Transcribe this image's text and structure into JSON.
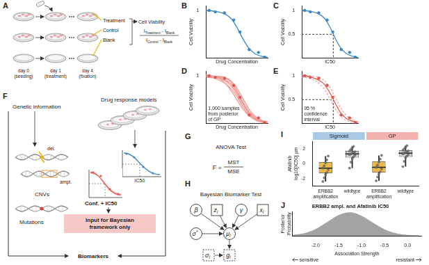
{
  "diagram": {
    "panel_letters": [
      "A",
      "B",
      "C",
      "D",
      "E",
      "F",
      "G",
      "H",
      "I",
      "J"
    ],
    "A": {
      "rows": [
        "Treatment",
        "Control",
        "Blank"
      ],
      "days": [
        [
          "day 0",
          "(seeding)"
        ],
        [
          "day 1",
          "(treatment)"
        ],
        [
          "day 4",
          "(fixation)"
        ]
      ],
      "result": "Cell Viability",
      "formula": {
        "numerator": [
          {
            "base": "I",
            "sub": "Treatment"
          },
          {
            "base": "I",
            "sub": "Blank"
          }
        ],
        "denominator": [
          {
            "base": "I",
            "sub": "Control"
          },
          {
            "base": "I",
            "sub": "Blank"
          }
        ],
        "operator": "-"
      }
    },
    "F": {
      "genetic": "Genetic information",
      "models": "Drug response models",
      "deletion": "del.",
      "amplification": "ampl.",
      "cnv": "CNVs",
      "mutations": "Mutations",
      "ic50": "IC50",
      "conf": "Conf. + IC50",
      "note": "Input for Bayesian framework only",
      "biomarkers": "Biomarkers"
    },
    "G": {
      "title": "ANOVA Test",
      "lhs": "F =",
      "numerator": "MST",
      "denominator": "MSE"
    },
    "H": {
      "title": "Bayesian Biomarker Test",
      "nodes": [
        {
          "label": "β",
          "shape": "circle"
        },
        {
          "label": "z",
          "sub": "i",
          "shape": "square"
        },
        {
          "label": "γ",
          "shape": "circle"
        },
        {
          "label": "x",
          "sub": "i",
          "shape": "square"
        },
        {
          "label": "σ",
          "sup": "*",
          "shape": "circle"
        },
        {
          "label": "μ",
          "sub": "i",
          "shape": "circle"
        },
        {
          "label": "σ",
          "sub": "i",
          "shape": "dashed"
        },
        {
          "label": "g",
          "sub": "i",
          "shape": "dashed"
        }
      ],
      "edges": [
        [
          0,
          5
        ],
        [
          1,
          5
        ],
        [
          2,
          5
        ],
        [
          3,
          5
        ],
        [
          4,
          5
        ],
        [
          5,
          7
        ],
        [
          6,
          7
        ]
      ]
    }
  },
  "chart_data": [
    {
      "type": "line",
      "x_label": "Drug Concentration",
      "y_label": "Cell Viability",
      "xlim": [
        0,
        10
      ],
      "ylim": [
        0,
        1.1
      ],
      "xticks": [],
      "yticks": [
        1
      ],
      "tick_labels": "y",
      "grid": false,
      "series": [
        {
          "type": "line",
          "color": "#3f87c4",
          "x": [
            0,
            1,
            2,
            3,
            4,
            5,
            6,
            7,
            8,
            9,
            10
          ],
          "values": [
            1.0,
            0.99,
            0.97,
            0.93,
            0.84,
            0.65,
            0.4,
            0.2,
            0.09,
            0.04,
            0.02
          ]
        },
        {
          "type": "scatter",
          "color": "#3f87c4",
          "x": [
            0.5,
            1.5,
            3,
            4.5,
            5.5,
            7,
            8.5,
            9.5
          ],
          "values": [
            1.0,
            0.97,
            0.95,
            0.8,
            0.55,
            0.18,
            0.12,
            0.02
          ]
        }
      ]
    },
    {
      "type": "line",
      "x_label": "IC50",
      "y_label": "Cell Viability",
      "xlim": [
        0,
        10
      ],
      "ylim": [
        0,
        1.1
      ],
      "xticks": [],
      "yticks": [
        0.5,
        1
      ],
      "tick_labels": "y",
      "grid": false,
      "series": [
        {
          "type": "line",
          "color": "#3f87c4",
          "x": [
            0,
            1,
            2,
            3,
            4,
            5,
            6,
            7,
            8,
            9,
            10
          ],
          "values": [
            1.0,
            0.99,
            0.97,
            0.93,
            0.84,
            0.65,
            0.4,
            0.2,
            0.09,
            0.04,
            0.02
          ]
        },
        {
          "type": "line",
          "line_style": "dashed",
          "color": "#666666",
          "x": [
            0,
            5.6,
            5.6
          ],
          "values": [
            0.5,
            0.5,
            0
          ]
        },
        {
          "type": "scatter",
          "color": "#3f87c4",
          "x": [
            0.5,
            1.5,
            3,
            4.5,
            5.5,
            7,
            8.5,
            9.5
          ],
          "values": [
            1.0,
            0.97,
            0.95,
            0.8,
            0.55,
            0.18,
            0.12,
            0.02
          ]
        }
      ]
    },
    {
      "type": "line",
      "x_label": "Drug Concentration",
      "y_label": "Cell Viability",
      "xlim": [
        0,
        10
      ],
      "ylim": [
        0,
        1.1
      ],
      "xticks": [],
      "yticks": [
        1
      ],
      "tick_labels": "y",
      "grid": false,
      "annotation": "1,000 samples from posterior of GP",
      "series": [
        {
          "type": "line",
          "color": "#f19a94",
          "x": [
            0,
            1,
            2,
            3,
            4,
            5,
            6,
            7,
            8,
            9,
            10
          ],
          "values": [
            1.0,
            1.0,
            0.98,
            0.95,
            0.88,
            0.7,
            0.45,
            0.25,
            0.12,
            0.06,
            0.03
          ]
        },
        {
          "type": "line",
          "color": "#f19a94",
          "x": [
            0,
            1,
            2,
            3,
            4,
            5,
            6,
            7,
            8,
            9,
            10
          ],
          "values": [
            0.98,
            0.97,
            0.95,
            0.9,
            0.8,
            0.62,
            0.4,
            0.22,
            0.1,
            0.05,
            0.02
          ]
        },
        {
          "type": "line",
          "color": "#f19a94",
          "x": [
            0,
            1,
            2,
            3,
            4,
            5,
            6,
            7,
            8,
            9,
            10
          ],
          "values": [
            1.02,
            1.0,
            0.96,
            0.86,
            0.7,
            0.5,
            0.3,
            0.16,
            0.08,
            0.04,
            0.03
          ]
        },
        {
          "type": "line",
          "color": "#f19a94",
          "x": [
            0,
            1,
            2,
            3,
            4,
            5,
            6,
            7,
            8,
            9,
            10
          ],
          "values": [
            1.0,
            0.99,
            0.99,
            0.97,
            0.9,
            0.75,
            0.52,
            0.3,
            0.15,
            0.07,
            0.04
          ]
        },
        {
          "type": "line",
          "color": "#f19a94",
          "x": [
            0,
            1,
            2,
            3,
            4,
            5,
            6,
            7,
            8,
            9,
            10
          ],
          "values": [
            0.97,
            0.96,
            0.92,
            0.85,
            0.74,
            0.57,
            0.35,
            0.18,
            0.09,
            0.05,
            0.02
          ]
        },
        {
          "type": "line",
          "color": "#f19a94",
          "x": [
            0,
            1,
            2,
            3,
            4,
            5,
            6,
            7,
            8,
            9,
            10
          ],
          "values": [
            1.01,
            1.0,
            0.97,
            0.92,
            0.84,
            0.66,
            0.42,
            0.2,
            0.07,
            0.03,
            0.01
          ]
        },
        {
          "type": "scatter",
          "color": "#e0574f",
          "x": [
            0.5,
            1.5,
            3,
            4.5,
            5.5,
            7,
            8.5,
            9.5
          ],
          "values": [
            1.0,
            0.97,
            0.95,
            0.8,
            0.55,
            0.18,
            0.12,
            0.02
          ]
        }
      ]
    },
    {
      "type": "line",
      "x_label": "IC50",
      "y_label": "Cell Viability",
      "xlim": [
        0,
        10
      ],
      "ylim": [
        0,
        1.1
      ],
      "xticks": [],
      "yticks": [
        0.5,
        1
      ],
      "tick_labels": "y",
      "grid": false,
      "annotation": "95 % confidence interval",
      "series": [
        {
          "type": "line",
          "line_style": "dashed",
          "color": "#f2aaa6",
          "x": [
            0,
            1,
            2,
            3,
            4,
            5,
            6,
            7,
            8,
            9,
            10
          ],
          "values": [
            1.02,
            1.01,
            0.99,
            0.97,
            0.9,
            0.76,
            0.54,
            0.31,
            0.16,
            0.08,
            0.04
          ]
        },
        {
          "type": "line",
          "line_style": "dashed",
          "color": "#f2aaa6",
          "x": [
            0,
            1,
            2,
            3,
            4,
            5,
            6,
            7,
            8,
            9,
            10
          ],
          "values": [
            0.97,
            0.96,
            0.92,
            0.85,
            0.72,
            0.52,
            0.3,
            0.14,
            0.06,
            0.03,
            0.01
          ]
        },
        {
          "type": "line",
          "color": "#e0574f",
          "x": [
            0,
            1,
            2,
            3,
            4,
            5,
            6,
            7,
            8,
            9,
            10
          ],
          "values": [
            1.0,
            0.99,
            0.96,
            0.91,
            0.82,
            0.64,
            0.41,
            0.21,
            0.1,
            0.05,
            0.02
          ]
        },
        {
          "type": "line",
          "line_style": "dashed",
          "color": "#666666",
          "x": [
            0,
            5.6,
            5.6
          ],
          "values": [
            0.5,
            0.5,
            0
          ]
        },
        {
          "type": "scatter",
          "color": "#e0574f",
          "x": [
            0.5,
            1.5,
            3,
            4.5,
            5.5,
            7,
            8.5,
            9.5
          ],
          "values": [
            1.0,
            0.97,
            0.95,
            0.8,
            0.55,
            0.18,
            0.12,
            0.02
          ]
        }
      ]
    },
    {
      "type": "box",
      "y_label": [
        "Afatinib",
        "log10[IC50] μm"
      ],
      "groups": [
        {
          "name": "Sigmoid",
          "color": "#a9c8e6",
          "categories": [
            0,
            1
          ]
        },
        {
          "name": "GP",
          "color": "#f2b3b0",
          "categories": [
            2,
            3
          ]
        }
      ],
      "categories": [
        "ERBB2 amplification",
        "wildtype",
        "ERBB2 amplification",
        "wildtype"
      ],
      "colors": [
        "#e8b84c",
        "#cfcfcf",
        "#e8b84c",
        "#cfcfcf"
      ],
      "ylim": [
        -3,
        3
      ],
      "yticks": [
        -2,
        0,
        2
      ],
      "grid": false,
      "boxes": [
        {
          "min": -2.4,
          "q1": -1.3,
          "median": -0.6,
          "q3": 0.2,
          "max": 1.0
        },
        {
          "min": -0.6,
          "q1": 0.8,
          "median": 1.3,
          "q3": 1.7,
          "max": 2.3
        },
        {
          "min": -2.3,
          "q1": -1.2,
          "median": -0.5,
          "q3": 0.3,
          "max": 1.1
        },
        {
          "min": -0.4,
          "q1": 0.9,
          "median": 1.4,
          "q3": 1.8,
          "max": 2.4
        }
      ],
      "points": [
        [
          -2.4,
          -1.9,
          -1.5,
          -1.2,
          -0.8,
          -0.6,
          -0.3,
          0.1,
          0.5,
          1.0
        ],
        [
          -0.6,
          0.2,
          0.7,
          0.9,
          1.1,
          1.2,
          1.3,
          1.4,
          1.5,
          1.6,
          1.7,
          1.9,
          2.1,
          2.3
        ],
        [
          -2.3,
          -1.8,
          -1.4,
          -1.1,
          -0.7,
          -0.5,
          -0.2,
          0.2,
          0.6,
          1.1
        ],
        [
          -0.4,
          0.3,
          0.8,
          1.0,
          1.2,
          1.3,
          1.4,
          1.5,
          1.6,
          1.7,
          1.8,
          2.0,
          2.2,
          2.4
        ]
      ]
    },
    {
      "type": "area",
      "title": "ERBB2 ampl. and Afatinib IC50",
      "x_label": "Association Strength",
      "y_label": "Posterior Probability",
      "x": [
        -2.5,
        -2.25,
        -2.0,
        -1.75,
        -1.5,
        -1.25,
        -1.0,
        -0.75,
        -0.5,
        -0.25,
        0.0,
        0.25
      ],
      "values": [
        0.03,
        0.1,
        0.28,
        0.58,
        0.88,
        1.0,
        0.85,
        0.55,
        0.27,
        0.1,
        0.03,
        0.01
      ],
      "color": "#a3a3a3",
      "xlim": [
        -2.5,
        0.3
      ],
      "ylim": [
        0,
        1.05
      ],
      "xticks": [
        {
          "value": -2,
          "label": "-2.0"
        },
        -1.5,
        {
          "value": -1,
          "label": "-1.0"
        },
        -0.5,
        {
          "value": 0,
          "label": "0.0"
        }
      ],
      "tick_labels": "x",
      "grid": false,
      "direction_labels": [
        "sensitive",
        "resistant"
      ]
    }
  ]
}
